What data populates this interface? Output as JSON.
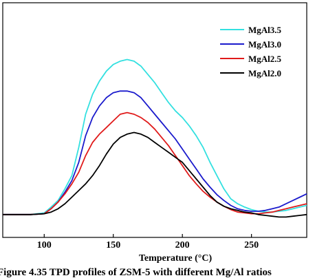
{
  "chart_data": {
    "type": "line",
    "title": "",
    "xlabel": "Temperature (°C)",
    "ylabel": "",
    "xlim": [
      70,
      290
    ],
    "ylim": [
      0,
      100
    ],
    "xticks": [
      100,
      150,
      200,
      250
    ],
    "yticks_shown": false,
    "grid": false,
    "legend_position": "top-right",
    "x": [
      70,
      80,
      90,
      100,
      105,
      110,
      115,
      120,
      125,
      130,
      135,
      140,
      145,
      150,
      155,
      160,
      165,
      170,
      175,
      180,
      185,
      190,
      195,
      200,
      205,
      210,
      215,
      220,
      225,
      230,
      235,
      240,
      245,
      250,
      255,
      260,
      265,
      270,
      275,
      280,
      285,
      290
    ],
    "series": [
      {
        "name": "MgAl3.5",
        "color": "#33e0e0",
        "values": [
          0.5,
          0.5,
          0.5,
          1.5,
          5,
          9,
          16,
          24,
          41,
          61,
          73,
          81,
          87,
          91,
          93,
          94,
          93,
          90,
          85,
          80,
          74,
          68,
          63,
          59,
          54,
          48,
          41,
          32,
          24,
          16,
          10,
          7,
          5,
          3.5,
          2.5,
          2,
          2,
          2.5,
          3,
          4,
          5,
          6
        ]
      },
      {
        "name": "MgAl3.0",
        "color": "#1a1acc",
        "values": [
          0.5,
          0.5,
          0.5,
          1,
          4,
          8,
          14,
          21,
          32,
          48,
          59,
          66,
          71,
          74,
          75,
          75,
          74,
          71,
          66,
          61,
          56,
          51,
          46,
          40,
          34,
          28,
          22,
          17,
          12.5,
          9,
          6,
          4,
          3,
          2.5,
          2.5,
          3,
          4,
          5,
          7,
          9,
          11,
          13
        ]
      },
      {
        "name": "MgAl2.5",
        "color": "#e01a1a",
        "values": [
          0.5,
          0.5,
          0.5,
          1,
          4,
          8,
          13,
          19,
          26,
          36,
          44,
          49,
          53,
          57,
          61,
          62,
          61,
          59,
          56,
          52,
          47,
          42,
          36,
          30,
          24,
          19,
          14.5,
          11,
          8,
          5.5,
          3.5,
          2,
          1.5,
          1,
          1,
          1.5,
          2,
          3,
          4,
          5,
          6,
          7
        ]
      },
      {
        "name": "MgAl2.0",
        "color": "#000000",
        "values": [
          0.5,
          0.5,
          0.5,
          1,
          2,
          4,
          7,
          11,
          15,
          19,
          24,
          30,
          37,
          43,
          47,
          49,
          50,
          49,
          47,
          44,
          41,
          38,
          35,
          32,
          27,
          22,
          17,
          12,
          8,
          5.5,
          4,
          3,
          2,
          1.5,
          0.5,
          0,
          -0.5,
          -1,
          -1,
          -0.5,
          0,
          0.5
        ]
      }
    ]
  },
  "caption": "Figure 4.35  TPD profiles of ZSM-5 with different Mg/Al ratios"
}
